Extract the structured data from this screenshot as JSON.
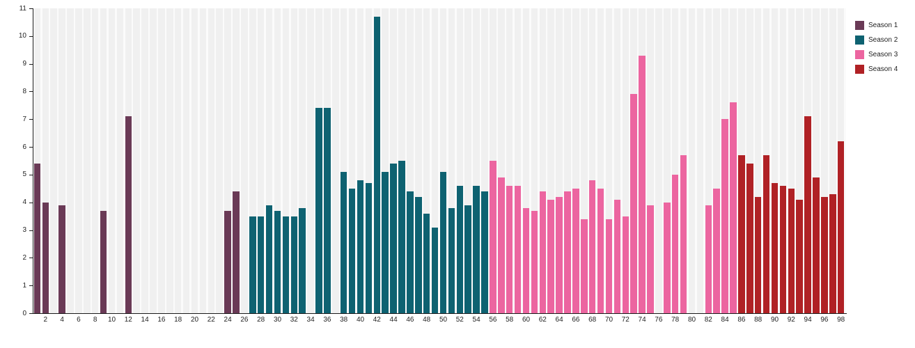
{
  "chart_data": {
    "type": "bar",
    "title": "",
    "xlabel": "",
    "ylabel": "",
    "ylim": [
      0,
      11
    ],
    "x_range": [
      1,
      98
    ],
    "y_ticks": [
      0,
      1,
      2,
      3,
      4,
      5,
      6,
      7,
      8,
      9,
      10,
      11
    ],
    "x_ticks": [
      2,
      4,
      6,
      8,
      10,
      12,
      14,
      16,
      18,
      20,
      22,
      24,
      26,
      28,
      30,
      32,
      34,
      36,
      38,
      40,
      42,
      44,
      46,
      48,
      50,
      52,
      54,
      56,
      58,
      60,
      62,
      64,
      66,
      68,
      70,
      72,
      74,
      76,
      78,
      80,
      82,
      84,
      86,
      88,
      90,
      92,
      94,
      96,
      98
    ],
    "grid": "vertical-stripes",
    "legend_position": "top-right-outside",
    "series": [
      {
        "name": "Season 1",
        "color": "#6a3a56",
        "points": [
          [
            1,
            5.4
          ],
          [
            2,
            4.0
          ],
          [
            4,
            3.9
          ],
          [
            9,
            3.7
          ],
          [
            12,
            7.1
          ],
          [
            24,
            3.7
          ],
          [
            25,
            4.4
          ]
        ]
      },
      {
        "name": "Season 2",
        "color": "#0e6271",
        "points": [
          [
            27,
            3.5
          ],
          [
            28,
            3.5
          ],
          [
            29,
            3.9
          ],
          [
            30,
            3.7
          ],
          [
            31,
            3.5
          ],
          [
            32,
            3.5
          ],
          [
            33,
            3.8
          ],
          [
            35,
            7.4
          ],
          [
            36,
            7.4
          ],
          [
            38,
            5.1
          ],
          [
            39,
            4.5
          ],
          [
            40,
            4.8
          ],
          [
            41,
            4.7
          ],
          [
            42,
            10.7
          ],
          [
            43,
            5.1
          ],
          [
            44,
            5.4
          ],
          [
            45,
            5.5
          ],
          [
            46,
            4.4
          ],
          [
            47,
            4.2
          ],
          [
            48,
            3.6
          ],
          [
            49,
            3.1
          ],
          [
            50,
            5.1
          ],
          [
            51,
            3.8
          ],
          [
            52,
            4.6
          ],
          [
            53,
            3.9
          ],
          [
            54,
            4.6
          ],
          [
            55,
            4.4
          ]
        ]
      },
      {
        "name": "Season 3",
        "color": "#ec65a0",
        "points": [
          [
            56,
            5.5
          ],
          [
            57,
            4.9
          ],
          [
            58,
            4.6
          ],
          [
            59,
            4.6
          ],
          [
            60,
            3.8
          ],
          [
            61,
            3.7
          ],
          [
            62,
            4.4
          ],
          [
            63,
            4.1
          ],
          [
            64,
            4.2
          ],
          [
            65,
            4.4
          ],
          [
            66,
            4.5
          ],
          [
            67,
            3.4
          ],
          [
            68,
            4.8
          ],
          [
            69,
            4.5
          ],
          [
            70,
            3.4
          ],
          [
            71,
            4.1
          ],
          [
            72,
            3.5
          ],
          [
            73,
            7.9
          ],
          [
            74,
            9.3
          ],
          [
            75,
            3.9
          ],
          [
            77,
            4.0
          ],
          [
            78,
            5.0
          ],
          [
            79,
            5.7
          ],
          [
            82,
            3.9
          ],
          [
            83,
            4.5
          ],
          [
            84,
            7.0
          ],
          [
            85,
            7.6
          ]
        ]
      },
      {
        "name": "Season 4",
        "color": "#b02125",
        "points": [
          [
            86,
            5.7
          ],
          [
            87,
            5.4
          ],
          [
            88,
            4.2
          ],
          [
            89,
            5.7
          ],
          [
            90,
            4.7
          ],
          [
            91,
            4.6
          ],
          [
            92,
            4.5
          ],
          [
            93,
            4.1
          ],
          [
            94,
            7.1
          ],
          [
            95,
            4.9
          ],
          [
            96,
            4.2
          ],
          [
            97,
            4.3
          ],
          [
            98,
            6.2
          ]
        ]
      }
    ]
  },
  "legend": {
    "items": [
      {
        "label": "Season 1",
        "color": "#6a3a56"
      },
      {
        "label": "Season 2",
        "color": "#0e6271"
      },
      {
        "label": "Season 3",
        "color": "#ec65a0"
      },
      {
        "label": "Season 4",
        "color": "#b02125"
      }
    ]
  },
  "colors": {
    "stripe": "#f0f0f0",
    "plot_background": "#fbfbfb",
    "axis": "#1a1a1a",
    "tick_text": "#222222",
    "page_background": "#ffffff"
  }
}
